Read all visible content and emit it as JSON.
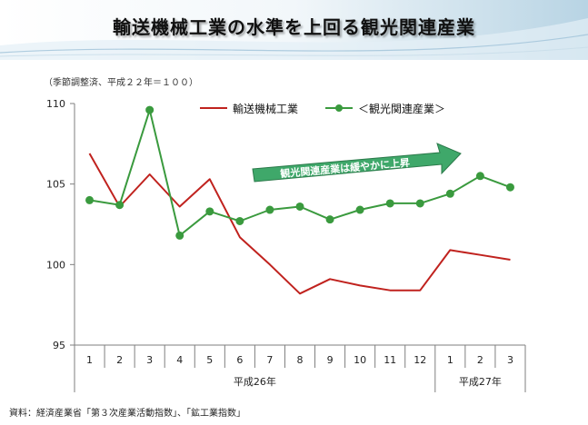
{
  "title": "輸送機械工業の水準を上回る観光関連産業",
  "note": "（季節調整済、平成２２年＝１００）",
  "source": "資料：経済産業省「第３次産業活動指数」、「鉱工業指数」",
  "annotation": "観光関連産業は緩やかに上昇",
  "colors": {
    "transport": "#c0221e",
    "tourism": "#3a9a3e",
    "arrow": "#3fa86a"
  },
  "chart_data": {
    "type": "line",
    "x": [
      "1",
      "2",
      "3",
      "4",
      "5",
      "6",
      "7",
      "8",
      "9",
      "10",
      "11",
      "12",
      "1",
      "2",
      "3"
    ],
    "year_groups": [
      {
        "label": "平成26年",
        "from": 0,
        "to": 11
      },
      {
        "label": "平成27年",
        "from": 12,
        "to": 14
      }
    ],
    "ylim": [
      95,
      110
    ],
    "yticks": [
      95,
      100,
      105,
      110
    ],
    "legend_position": "top-right",
    "series": [
      {
        "name": "輸送機械工業",
        "color": "#c0221e",
        "marker": false,
        "values": [
          106.9,
          103.6,
          105.6,
          103.6,
          105.3,
          101.7,
          100.0,
          98.2,
          99.1,
          98.7,
          98.4,
          98.4,
          100.9,
          100.6,
          100.3
        ]
      },
      {
        "name": "＜観光関連産業＞",
        "color": "#3a9a3e",
        "marker": true,
        "values": [
          104.0,
          103.7,
          109.6,
          101.8,
          103.3,
          102.7,
          103.4,
          103.6,
          102.8,
          103.4,
          103.8,
          103.8,
          104.4,
          105.5,
          104.8
        ]
      }
    ]
  }
}
